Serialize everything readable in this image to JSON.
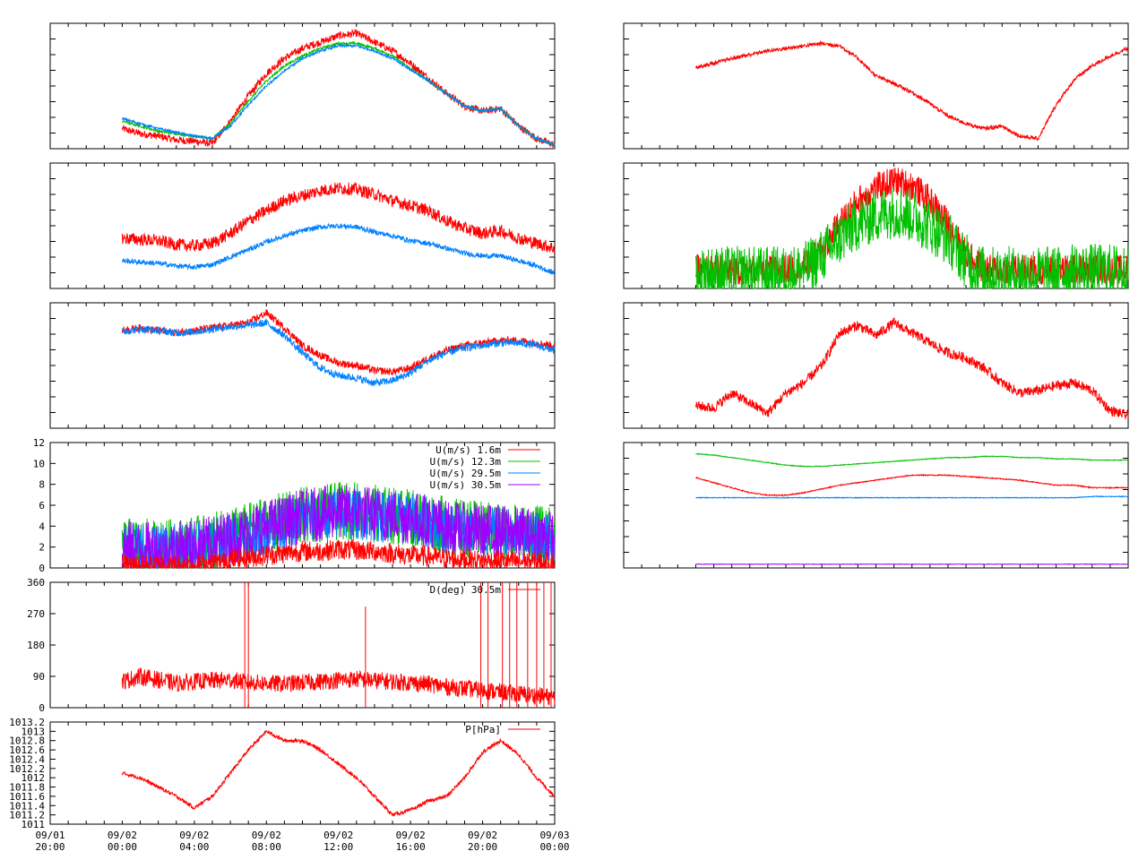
{
  "x_axis": {
    "ticks": [
      {
        "date": "09/01",
        "time": "20:00"
      },
      {
        "date": "09/02",
        "time": "00:00"
      },
      {
        "date": "09/02",
        "time": "04:00"
      },
      {
        "date": "09/02",
        "time": "08:00"
      },
      {
        "date": "09/02",
        "time": "12:00"
      },
      {
        "date": "09/02",
        "time": "16:00"
      },
      {
        "date": "09/02",
        "time": "20:00"
      },
      {
        "date": "09/03",
        "time": "00:00"
      }
    ]
  },
  "colors": {
    "red": "#ff0000",
    "green": "#00c000",
    "blue": "#0080ff",
    "purple": "#a000ff"
  },
  "chart_data": [
    {
      "type": "line",
      "panel": "left-1",
      "x_hours": [
        0,
        1,
        2,
        3,
        4,
        5,
        6,
        7,
        8,
        9,
        10,
        11,
        12,
        13,
        14,
        15,
        16,
        17,
        18,
        19,
        20,
        21,
        22,
        23,
        24
      ],
      "ylim": [
        0,
        100
      ],
      "series": [
        {
          "color": "#ff0000",
          "noise": 3,
          "values": [
            16,
            12,
            10,
            7,
            6,
            4,
            22,
            42,
            60,
            72,
            80,
            85,
            90,
            92,
            85,
            78,
            68,
            56,
            44,
            34,
            30,
            32,
            18,
            8,
            3
          ]
        },
        {
          "color": "#00c000",
          "noise": 1,
          "values": [
            22,
            18,
            14,
            12,
            10,
            8,
            20,
            38,
            54,
            66,
            74,
            80,
            84,
            84,
            80,
            74,
            64,
            54,
            44,
            34,
            30,
            32,
            18,
            8,
            3
          ]
        },
        {
          "color": "#0080ff",
          "noise": 1,
          "values": [
            24,
            20,
            16,
            13,
            10,
            8,
            18,
            35,
            50,
            62,
            72,
            78,
            82,
            82,
            78,
            72,
            63,
            54,
            44,
            34,
            30,
            32,
            18,
            8,
            3
          ]
        }
      ]
    },
    {
      "type": "line",
      "panel": "left-2",
      "x_hours": [
        0,
        1,
        2,
        3,
        4,
        5,
        6,
        7,
        8,
        9,
        10,
        11,
        12,
        13,
        14,
        15,
        16,
        17,
        18,
        19,
        20,
        21,
        22,
        23,
        24
      ],
      "ylim": [
        0,
        100
      ],
      "series": [
        {
          "color": "#ff0000",
          "noise": 5,
          "values": [
            40,
            39,
            38,
            35,
            34,
            36,
            44,
            54,
            62,
            70,
            74,
            78,
            80,
            79,
            75,
            70,
            66,
            62,
            54,
            48,
            44,
            46,
            40,
            36,
            32
          ]
        },
        {
          "color": "#0080ff",
          "noise": 2,
          "values": [
            22,
            21,
            20,
            18,
            17,
            19,
            25,
            31,
            37,
            42,
            46,
            49,
            50,
            49,
            45,
            42,
            38,
            36,
            32,
            28,
            26,
            26,
            22,
            18,
            12
          ]
        }
      ]
    },
    {
      "type": "line",
      "panel": "left-3",
      "x_hours": [
        0,
        1,
        2,
        3,
        4,
        5,
        6,
        7,
        8,
        9,
        10,
        11,
        12,
        13,
        14,
        15,
        16,
        17,
        18,
        19,
        20,
        21,
        22,
        23,
        24
      ],
      "ylim": [
        0,
        100
      ],
      "series": [
        {
          "color": "#ff0000",
          "noise": 3,
          "values": [
            78,
            80,
            78,
            76,
            78,
            80,
            82,
            84,
            92,
            80,
            66,
            58,
            52,
            50,
            46,
            45,
            48,
            56,
            62,
            66,
            68,
            70,
            70,
            68,
            66
          ]
        },
        {
          "color": "#0080ff",
          "noise": 3,
          "values": [
            77,
            79,
            78,
            76,
            77,
            79,
            81,
            82,
            84,
            74,
            60,
            48,
            42,
            40,
            36,
            38,
            44,
            54,
            60,
            64,
            66,
            68,
            68,
            66,
            62
          ]
        }
      ]
    },
    {
      "type": "line",
      "panel": "left-4",
      "x_hours": [
        0,
        1,
        2,
        3,
        4,
        5,
        6,
        7,
        8,
        9,
        10,
        11,
        12,
        13,
        14,
        15,
        16,
        17,
        18,
        19,
        20,
        21,
        22,
        23,
        24
      ],
      "ylim": [
        0,
        12
      ],
      "yticks": [
        0,
        2,
        4,
        6,
        8,
        10,
        12
      ],
      "series": [
        {
          "name": "U(m/s) 12.3m",
          "color": "#00c000",
          "noise": 2.8,
          "values": [
            2.0,
            2.0,
            1.8,
            2.0,
            2.2,
            2.5,
            3.0,
            3.5,
            4.0,
            4.5,
            5.0,
            5.2,
            5.4,
            5.5,
            5.2,
            5.0,
            4.8,
            4.6,
            4.0,
            3.8,
            3.6,
            3.6,
            3.4,
            3.2,
            3.0
          ]
        },
        {
          "name": "U(m/s) 29.5m",
          "color": "#0080ff",
          "noise": 2.5,
          "values": [
            1.8,
            1.8,
            1.6,
            1.8,
            2.0,
            2.2,
            2.8,
            3.2,
            3.8,
            4.2,
            4.8,
            5.0,
            5.2,
            5.2,
            5.0,
            4.8,
            4.6,
            4.4,
            3.8,
            3.6,
            3.4,
            3.4,
            3.2,
            3.0,
            2.8
          ]
        },
        {
          "name": "U(m/s) 30.5m",
          "color": "#a000ff",
          "noise": 2.6,
          "values": [
            1.9,
            1.9,
            1.7,
            1.9,
            2.1,
            2.4,
            3.0,
            3.4,
            4.0,
            4.4,
            5.0,
            5.2,
            5.4,
            5.4,
            5.2,
            5.0,
            4.8,
            4.5,
            3.9,
            3.7,
            3.5,
            3.5,
            3.3,
            3.1,
            2.9
          ]
        },
        {
          "name": "U(m/s) 1.6m",
          "color": "#ff0000",
          "noise": 1.0,
          "values": [
            0.3,
            0.3,
            0.3,
            0.3,
            0.3,
            0.4,
            0.8,
            1.0,
            1.2,
            1.4,
            1.6,
            1.6,
            1.8,
            1.7,
            1.6,
            1.4,
            1.2,
            1.1,
            0.9,
            0.8,
            0.7,
            0.7,
            0.6,
            0.6,
            0.5
          ]
        }
      ]
    },
    {
      "type": "line",
      "panel": "left-5",
      "x_hours": [
        0,
        1,
        2,
        3,
        4,
        5,
        6,
        7,
        8,
        9,
        10,
        11,
        12,
        13,
        14,
        15,
        16,
        17,
        18,
        19,
        20,
        21,
        22,
        23,
        24
      ],
      "ylim": [
        0,
        360
      ],
      "yticks": [
        0,
        90,
        180,
        270,
        360
      ],
      "series": [
        {
          "name": "D(deg) 30.5m",
          "color": "#ff0000",
          "noise": 25,
          "values": [
            75,
            90,
            80,
            70,
            75,
            78,
            80,
            72,
            70,
            68,
            72,
            75,
            80,
            82,
            78,
            75,
            72,
            68,
            60,
            55,
            50,
            45,
            40,
            35,
            30
          ]
        }
      ],
      "spikes": [
        {
          "x": 6.8,
          "y": 360
        },
        {
          "x": 7.0,
          "y": 360
        },
        {
          "x": 13.5,
          "y": 290
        },
        {
          "x": 19.9,
          "y": 360
        },
        {
          "x": 20.3,
          "y": 360
        },
        {
          "x": 21.1,
          "y": 360
        },
        {
          "x": 21.5,
          "y": 360
        },
        {
          "x": 21.9,
          "y": 360
        },
        {
          "x": 22.5,
          "y": 360
        },
        {
          "x": 23.0,
          "y": 360
        },
        {
          "x": 23.4,
          "y": 360
        },
        {
          "x": 23.8,
          "y": 360
        }
      ]
    },
    {
      "type": "line",
      "panel": "left-6",
      "x_hours": [
        0,
        1,
        2,
        3,
        4,
        5,
        6,
        7,
        8,
        9,
        10,
        11,
        12,
        13,
        14,
        15,
        16,
        17,
        18,
        19,
        20,
        21,
        22,
        23,
        24
      ],
      "ylim": [
        1011,
        1013.2
      ],
      "yticks": [
        1011,
        1011.2,
        1011.4,
        1011.6,
        1011.8,
        1012,
        1012.2,
        1012.4,
        1012.6,
        1012.8,
        1013,
        1013.2
      ],
      "series": [
        {
          "name": "P[hPa]",
          "color": "#ff0000",
          "noise": 0.04,
          "values": [
            1012.1,
            1012.0,
            1011.8,
            1011.6,
            1011.35,
            1011.6,
            1012.1,
            1012.6,
            1013.0,
            1012.8,
            1012.8,
            1012.6,
            1012.3,
            1012.0,
            1011.6,
            1011.2,
            1011.3,
            1011.5,
            1011.6,
            1012.0,
            1012.55,
            1012.8,
            1012.5,
            1012.0,
            1011.6
          ]
        }
      ]
    },
    {
      "type": "line",
      "panel": "right-1",
      "x_hours": [
        0,
        1,
        2,
        3,
        4,
        5,
        6,
        7,
        8,
        9,
        10,
        11,
        12,
        13,
        14,
        15,
        16,
        17,
        18,
        19,
        20,
        21,
        22,
        23,
        24
      ],
      "ylim": [
        0,
        100
      ],
      "series": [
        {
          "color": "#ff0000",
          "noise": 1.5,
          "values": [
            65,
            68,
            72,
            75,
            78,
            80,
            82,
            84,
            82,
            72,
            58,
            52,
            45,
            36,
            26,
            20,
            16,
            18,
            10,
            8,
            35,
            55,
            66,
            74,
            80
          ]
        }
      ]
    },
    {
      "type": "line",
      "panel": "right-2",
      "x_hours": [
        0,
        1,
        2,
        3,
        4,
        5,
        6,
        7,
        8,
        9,
        10,
        11,
        12,
        13,
        14,
        15,
        16,
        17,
        18,
        19,
        20,
        21,
        22,
        23,
        24
      ],
      "ylim": [
        0,
        100
      ],
      "series": [
        {
          "color": "#ff0000",
          "noise": 12,
          "values": [
            15,
            15,
            15,
            15,
            15,
            15,
            18,
            30,
            52,
            70,
            80,
            86,
            82,
            70,
            52,
            28,
            15,
            15,
            15,
            15,
            15,
            15,
            15,
            15,
            15
          ]
        },
        {
          "color": "#00c000",
          "noise": 22,
          "values": [
            12,
            12,
            12,
            12,
            12,
            12,
            15,
            26,
            40,
            52,
            58,
            62,
            58,
            50,
            40,
            22,
            12,
            12,
            12,
            12,
            12,
            14,
            14,
            14,
            14
          ]
        }
      ]
    },
    {
      "type": "line",
      "panel": "right-3",
      "x_hours": [
        0,
        1,
        2,
        3,
        4,
        5,
        6,
        7,
        8,
        9,
        10,
        11,
        12,
        13,
        14,
        15,
        16,
        17,
        18,
        19,
        20,
        21,
        22,
        23,
        24
      ],
      "ylim": [
        0,
        100
      ],
      "series": [
        {
          "color": "#ff0000",
          "noise": 4,
          "values": [
            18,
            16,
            28,
            20,
            12,
            28,
            36,
            50,
            76,
            82,
            74,
            84,
            76,
            68,
            60,
            56,
            48,
            36,
            28,
            30,
            34,
            36,
            30,
            14,
            10
          ]
        }
      ]
    },
    {
      "type": "line",
      "panel": "right-4",
      "x_hours": [
        0,
        1,
        2,
        3,
        4,
        5,
        6,
        7,
        8,
        9,
        10,
        11,
        12,
        13,
        14,
        15,
        16,
        17,
        18,
        19,
        20,
        21,
        22,
        23,
        24
      ],
      "ylim": [
        0,
        100
      ],
      "series": [
        {
          "color": "#00c000",
          "noise": 0.3,
          "values": [
            91,
            90,
            88,
            86,
            84,
            82,
            81,
            81,
            82,
            83,
            84,
            85,
            86,
            87,
            88,
            88,
            89,
            89,
            88,
            88,
            87,
            87,
            86,
            86,
            86
          ]
        },
        {
          "color": "#ff0000",
          "noise": 0.4,
          "values": [
            72,
            68,
            64,
            60,
            58,
            58,
            60,
            63,
            66,
            68,
            70,
            72,
            74,
            74,
            74,
            73,
            72,
            71,
            70,
            68,
            66,
            66,
            64,
            64,
            64
          ]
        },
        {
          "color": "#0080ff",
          "noise": 0.3,
          "values": [
            56,
            56,
            56,
            56,
            56,
            56,
            56,
            56,
            56,
            56,
            56,
            56,
            56,
            56,
            56,
            56,
            56,
            56,
            56,
            56,
            56,
            56,
            57,
            57,
            57
          ]
        },
        {
          "color": "#a000ff",
          "noise": 0.2,
          "values": [
            3,
            3,
            3,
            3,
            3,
            3,
            3,
            3,
            3,
            3,
            3,
            3,
            3,
            3,
            3,
            3,
            3,
            3,
            3,
            3,
            3,
            3,
            3,
            3,
            3
          ]
        }
      ]
    }
  ]
}
